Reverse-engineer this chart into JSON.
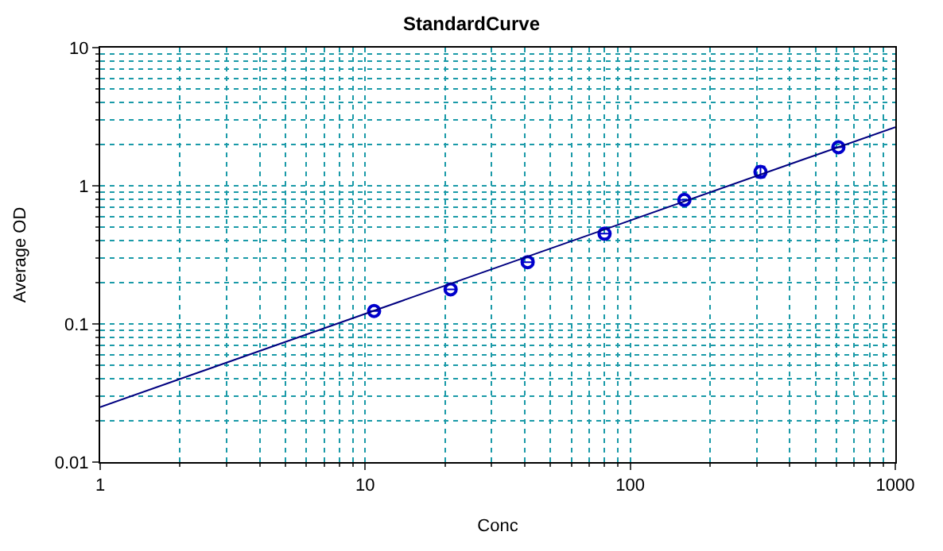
{
  "chart_data": {
    "type": "scatter",
    "title": "StandardCurve",
    "xlabel": "Conc",
    "ylabel": "Average OD",
    "log": "xy",
    "grid": true,
    "xlim": [
      1,
      1000
    ],
    "ylim": [
      0.01,
      10
    ],
    "xticks": [
      1,
      10,
      100,
      1000
    ],
    "yticks": [
      0.01,
      0.1,
      1,
      10
    ],
    "series": [
      {
        "color": "#0000cc",
        "marker": "circle",
        "x": [
          10.8,
          21,
          41,
          80,
          160,
          310,
          610
        ],
        "values": [
          0.124,
          0.178,
          0.28,
          0.45,
          0.79,
          1.26,
          1.9
        ],
        "errors": [
          null,
          null,
          null,
          null,
          null,
          [
            1.15,
            1.38
          ],
          null
        ]
      },
      {
        "type": "line",
        "color": "#000080",
        "marker": "none",
        "line_style": "solid",
        "x": [
          1,
          1000
        ],
        "values": [
          0.025,
          2.66
        ]
      }
    ]
  }
}
